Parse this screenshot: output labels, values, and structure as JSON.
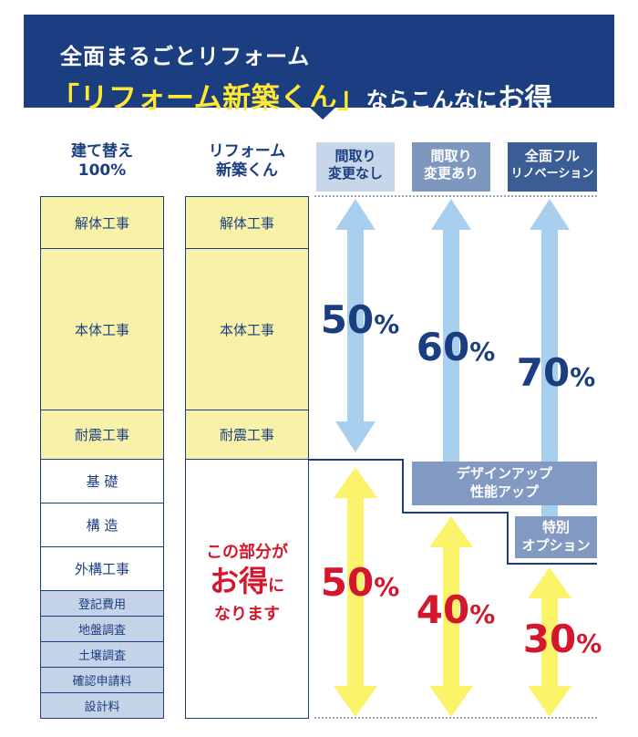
{
  "banner": {
    "line1": "全面まるごとリフォーム",
    "highlight": "「リフォーム新築くん」",
    "line2_mid": "ならこんなに",
    "line2_big": "お得"
  },
  "columns": {
    "rebuild": {
      "title_line1": "建て替え",
      "title_line2": "100%"
    },
    "reform": {
      "title_line1": "リフォーム",
      "title_line2": "新築くん"
    },
    "scenarios": [
      {
        "line1": "間取り",
        "line2": "変更なし",
        "blue_percent": 50,
        "yellow_percent": 50
      },
      {
        "line1": "間取り",
        "line2": "変更あり",
        "blue_percent": 60,
        "yellow_percent": 40
      },
      {
        "line1": "全面フル",
        "line2": "リノベーション",
        "blue_percent": 70,
        "yellow_percent": 30
      }
    ],
    "percent_unit": "%"
  },
  "rebuild_items": [
    "解体工事",
    "本体工事",
    "耐震工事",
    "基 礎",
    "構 造",
    "外構工事",
    "登記費用",
    "地盤調査",
    "土壌調査",
    "確認申請料",
    "設計料"
  ],
  "reform_items": [
    "解体工事",
    "本体工事",
    "耐震工事"
  ],
  "savings": {
    "line1": "この部分が",
    "line2_big": "お得",
    "line2_small": "に",
    "line3": "なります"
  },
  "options": [
    {
      "line1": "デザインアップ",
      "line2": "性能アップ"
    },
    {
      "line1": "特別",
      "line2": "オプション"
    }
  ],
  "colors": {
    "navy": "#1b3e80",
    "accent_yellow": "#ffe834",
    "cell_yellow": "#f8f2a8",
    "cell_blue": "#c5d3e8",
    "arrow_blue": "#a9cfee",
    "arrow_yellow": "#fbf36a",
    "red": "#d3172c"
  }
}
